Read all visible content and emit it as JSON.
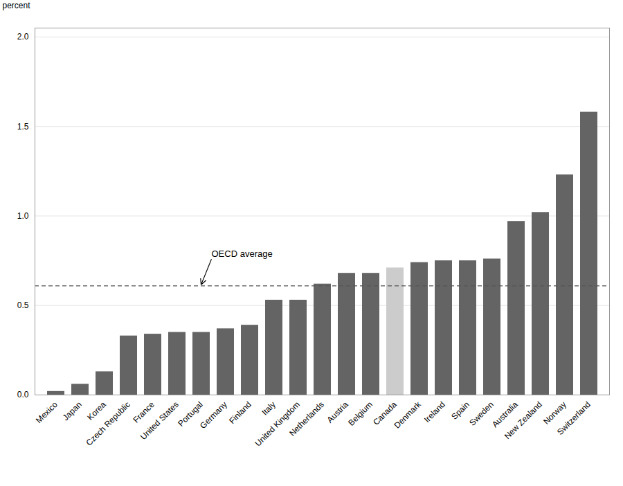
{
  "chart_data": {
    "type": "bar",
    "y_label": "percent",
    "categories": [
      "Mexico",
      "Japan",
      "Korea",
      "Czech Republic",
      "France",
      "United States",
      "Portugal",
      "Germany",
      "Finland",
      "Italy",
      "United Kingdom",
      "Netherlands",
      "Austria",
      "Belgium",
      "Canada",
      "Denmark",
      "Ireland",
      "Spain",
      "Sweden",
      "Australia",
      "New Zealand",
      "Norway",
      "Switzerland"
    ],
    "values": [
      0.02,
      0.06,
      0.13,
      0.33,
      0.34,
      0.35,
      0.35,
      0.37,
      0.39,
      0.53,
      0.53,
      0.62,
      0.68,
      0.68,
      0.71,
      0.74,
      0.75,
      0.75,
      0.76,
      0.97,
      1.02,
      1.23,
      1.58
    ],
    "colors": [
      "#646464",
      "#646464",
      "#646464",
      "#646464",
      "#646464",
      "#646464",
      "#646464",
      "#646464",
      "#646464",
      "#646464",
      "#646464",
      "#646464",
      "#646464",
      "#646464",
      "#cccccc",
      "#646464",
      "#646464",
      "#646464",
      "#646464",
      "#646464",
      "#646464",
      "#646464",
      "#646464"
    ],
    "ylim": [
      0,
      2.05
    ],
    "yticks": [
      {
        "value": 0.0,
        "label": "0.0"
      },
      0.5,
      {
        "value": 1.0,
        "label": "1.0"
      },
      1.5,
      {
        "value": 2.0,
        "label": "2.0"
      }
    ],
    "grid": true,
    "reference_lines": [
      {
        "y": 0.61,
        "color": "#555555",
        "line_style": "dashed"
      }
    ],
    "annotations": [
      {
        "text": "OECD average",
        "x": "Portugal",
        "y": 0.61
      }
    ]
  }
}
